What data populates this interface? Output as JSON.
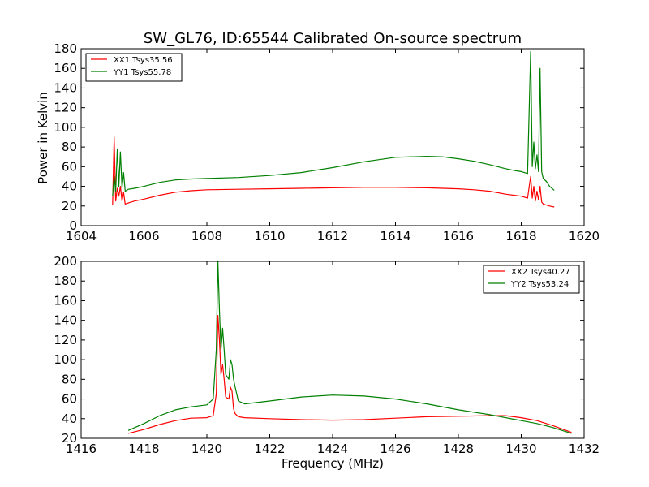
{
  "chart_data": [
    {
      "type": "line",
      "title": "SW_GL76, ID:65544 Calibrated On-source spectrum",
      "xlabel": "",
      "ylabel": "Power in Kelvin",
      "xlim": [
        1604,
        1620
      ],
      "ylim": [
        0,
        180
      ],
      "xticks": [
        1604,
        1606,
        1608,
        1610,
        1612,
        1614,
        1616,
        1618,
        1620
      ],
      "yticks": [
        0,
        20,
        40,
        60,
        80,
        100,
        120,
        140,
        160,
        180
      ],
      "legend_position": "top-left",
      "series": [
        {
          "name": "XX1 Tsys35.56",
          "color": "#ff0000",
          "x": [
            1605.0,
            1605.05,
            1605.1,
            1605.15,
            1605.2,
            1605.25,
            1605.3,
            1605.35,
            1605.4,
            1605.5,
            1605.7,
            1606.0,
            1606.5,
            1607.0,
            1607.5,
            1608.0,
            1609.0,
            1610.0,
            1611.0,
            1612.0,
            1613.0,
            1614.0,
            1615.0,
            1616.0,
            1616.5,
            1617.0,
            1617.5,
            1618.0,
            1618.2,
            1618.3,
            1618.35,
            1618.4,
            1618.45,
            1618.5,
            1618.55,
            1618.6,
            1618.65,
            1618.7,
            1618.8,
            1618.9,
            1619.05
          ],
          "values": [
            21,
            90,
            25,
            38,
            30,
            40,
            25,
            34,
            22,
            23,
            25,
            27,
            31,
            34,
            35.5,
            36.5,
            37,
            37.5,
            38,
            38.5,
            39,
            39,
            38.5,
            37.5,
            36.5,
            35,
            32,
            30,
            28,
            50,
            28,
            40,
            25,
            35,
            26,
            40,
            24,
            22,
            21,
            20,
            19
          ]
        },
        {
          "name": "YY1 Tsys55.78",
          "color": "#008000",
          "x": [
            1605.0,
            1605.05,
            1605.1,
            1605.15,
            1605.2,
            1605.25,
            1605.3,
            1605.35,
            1605.4,
            1605.5,
            1605.7,
            1606.0,
            1606.5,
            1607.0,
            1607.5,
            1608.0,
            1609.0,
            1610.0,
            1611.0,
            1612.0,
            1613.0,
            1614.0,
            1615.0,
            1615.5,
            1616.0,
            1616.5,
            1617.0,
            1617.5,
            1617.8,
            1618.0,
            1618.2,
            1618.3,
            1618.35,
            1618.4,
            1618.45,
            1618.5,
            1618.55,
            1618.6,
            1618.65,
            1618.7,
            1618.8,
            1618.9,
            1619.05
          ],
          "values": [
            30,
            50,
            35,
            78,
            40,
            75,
            38,
            54,
            35,
            37,
            38,
            40,
            44,
            46.5,
            47.5,
            48,
            49,
            51,
            54,
            59,
            65,
            69.5,
            70.5,
            70,
            68,
            65.5,
            62,
            58,
            56,
            55,
            53,
            177,
            60,
            85,
            58,
            72,
            55,
            160,
            55,
            48,
            45,
            40,
            36
          ]
        }
      ]
    },
    {
      "type": "line",
      "title": "",
      "xlabel": "Frequency (MHz)",
      "ylabel": "",
      "xlim": [
        1416,
        1432
      ],
      "ylim": [
        20,
        200
      ],
      "xticks": [
        1416,
        1418,
        1420,
        1422,
        1424,
        1426,
        1428,
        1430,
        1432
      ],
      "yticks": [
        20,
        40,
        60,
        80,
        100,
        120,
        140,
        160,
        180,
        200
      ],
      "legend_position": "top-right",
      "series": [
        {
          "name": "XX2 Tsys40.27",
          "color": "#ff0000",
          "x": [
            1417.5,
            1418.0,
            1418.5,
            1419.0,
            1419.5,
            1420.0,
            1420.2,
            1420.3,
            1420.35,
            1420.4,
            1420.45,
            1420.5,
            1420.55,
            1420.6,
            1420.7,
            1420.75,
            1420.8,
            1420.85,
            1420.9,
            1421.0,
            1421.2,
            1422.0,
            1423.0,
            1424.0,
            1425.0,
            1426.0,
            1427.0,
            1428.0,
            1429.0,
            1429.5,
            1430.0,
            1430.5,
            1431.0,
            1431.6
          ],
          "values": [
            25,
            29,
            34,
            38,
            40.5,
            41,
            43,
            65,
            145,
            120,
            85,
            95,
            80,
            62,
            60,
            72,
            68,
            50,
            45,
            42,
            41,
            40,
            39,
            38.5,
            39,
            40.5,
            42,
            42.5,
            43,
            43,
            41,
            38,
            33,
            26
          ]
        },
        {
          "name": "YY2 Tsys53.24",
          "color": "#008000",
          "x": [
            1417.5,
            1418.0,
            1418.5,
            1419.0,
            1419.5,
            1420.0,
            1420.2,
            1420.3,
            1420.35,
            1420.4,
            1420.45,
            1420.5,
            1420.55,
            1420.6,
            1420.7,
            1420.75,
            1420.8,
            1420.85,
            1420.9,
            1421.0,
            1421.2,
            1422.0,
            1423.0,
            1424.0,
            1425.0,
            1426.0,
            1427.0,
            1428.0,
            1429.0,
            1430.0,
            1430.5,
            1431.0,
            1431.6
          ],
          "values": [
            28,
            35,
            43,
            49,
            52,
            54,
            60,
            110,
            200,
            150,
            110,
            132,
            110,
            85,
            80,
            100,
            95,
            80,
            72,
            58,
            55,
            58,
            62,
            64,
            63,
            60,
            55,
            49,
            44,
            38,
            35,
            31,
            25
          ]
        }
      ]
    }
  ]
}
